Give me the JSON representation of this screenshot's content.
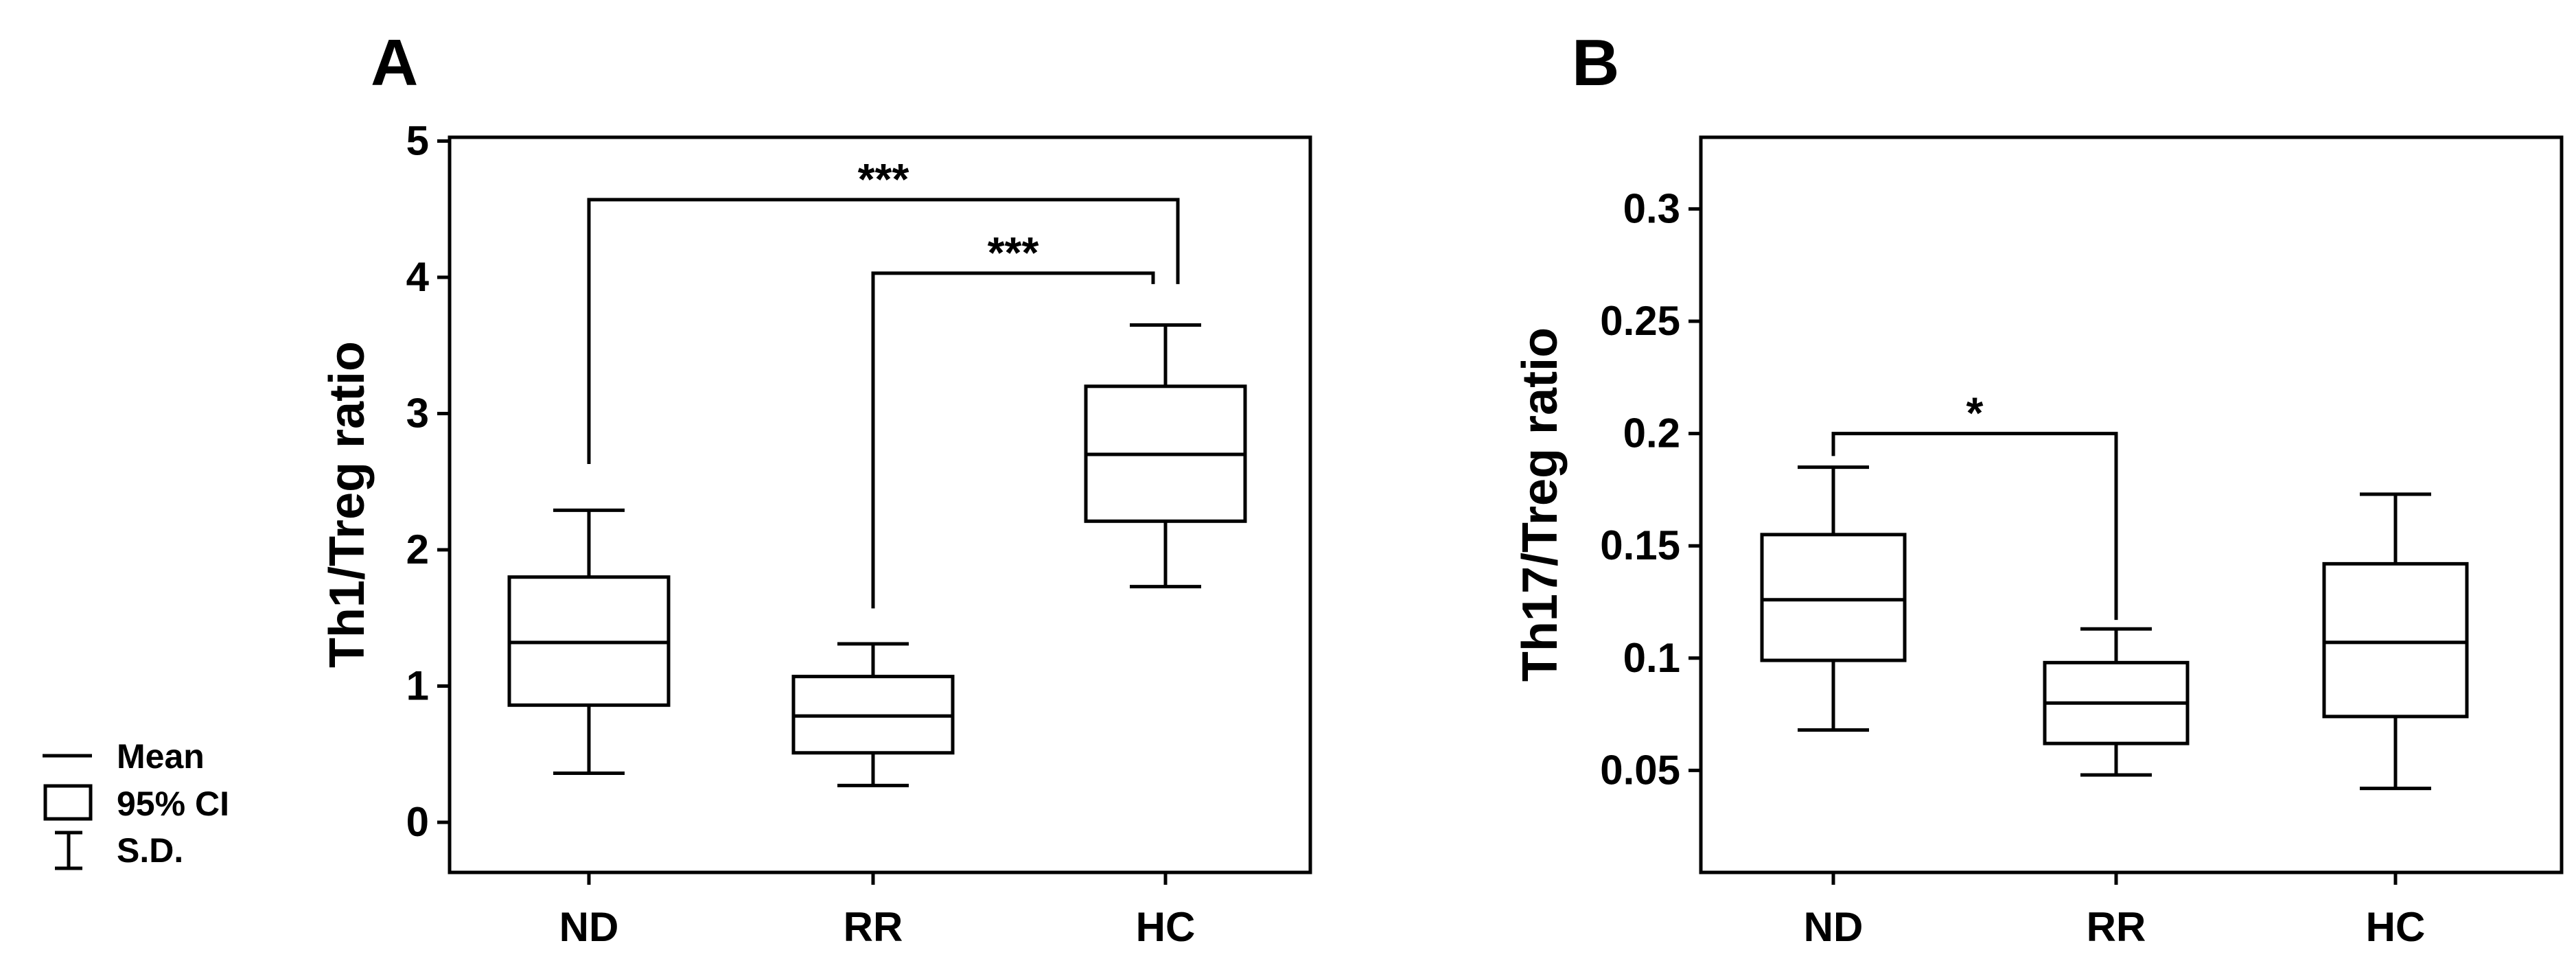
{
  "chart_data": [
    {
      "panel": "A",
      "type": "box",
      "ylabel": "Th1/Treg ratio",
      "xlabel": "",
      "ylim": [
        -0.35,
        5.0
      ],
      "yticks": [
        0,
        1,
        2,
        3,
        4,
        5
      ],
      "ytick_labels": [
        "0",
        "1",
        "2",
        "3",
        "4",
        "5"
      ],
      "categories": [
        "ND",
        "RR",
        "HC"
      ],
      "boxes": [
        {
          "category": "ND",
          "sd_low": 0.36,
          "ci_low": 0.86,
          "mean": 1.32,
          "ci_high": 1.8,
          "sd_high": 2.29
        },
        {
          "category": "RR",
          "sd_low": 0.27,
          "ci_low": 0.51,
          "mean": 0.78,
          "ci_high": 1.07,
          "sd_high": 1.31
        },
        {
          "category": "HC",
          "sd_low": 1.73,
          "ci_low": 2.21,
          "mean": 2.7,
          "ci_high": 3.2,
          "sd_high": 3.65
        }
      ],
      "significance": [
        {
          "from": "ND",
          "to": "HC",
          "label": "***",
          "bar_y": 4.57,
          "from_y": 2.63,
          "to_y": 3.95
        },
        {
          "from": "RR",
          "to": "HC",
          "label": "***",
          "bar_y": 4.03,
          "from_y": 1.57,
          "to_y": 3.95
        }
      ]
    },
    {
      "panel": "B",
      "type": "box",
      "ylabel": "Th17/Treg ratio",
      "xlabel": "",
      "ylim": [
        0.0,
        0.326
      ],
      "yticks": [
        0.05,
        0.1,
        0.15,
        0.2,
        0.25,
        0.3
      ],
      "ytick_labels": [
        "0.05",
        "0.1",
        "0.15",
        "0.2",
        "0.25",
        "0.3"
      ],
      "categories": [
        "ND",
        "RR",
        "HC"
      ],
      "boxes": [
        {
          "category": "ND",
          "sd_low": 0.068,
          "ci_low": 0.099,
          "mean": 0.126,
          "ci_high": 0.155,
          "sd_high": 0.185
        },
        {
          "category": "RR",
          "sd_low": 0.048,
          "ci_low": 0.062,
          "mean": 0.08,
          "ci_high": 0.098,
          "sd_high": 0.113
        },
        {
          "category": "HC",
          "sd_low": 0.042,
          "ci_low": 0.074,
          "mean": 0.107,
          "ci_high": 0.142,
          "sd_high": 0.173
        }
      ],
      "significance": [
        {
          "from": "ND",
          "to": "RR",
          "label": "*",
          "bar_y": 0.2,
          "from_y": 0.19,
          "to_y": 0.117
        }
      ]
    }
  ],
  "legend": {
    "items": [
      {
        "symbol": "line",
        "label": "Mean"
      },
      {
        "symbol": "box",
        "label": "95% CI"
      },
      {
        "symbol": "whisker",
        "label": "S.D."
      }
    ]
  }
}
